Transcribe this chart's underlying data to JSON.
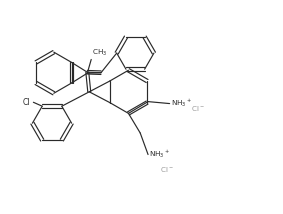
{
  "bg_color": "#ffffff",
  "line_color": "#2a2a2a",
  "gray_color": "#999999",
  "figsize": [
    2.83,
    2.14
  ],
  "dpi": 100,
  "lw": 0.85
}
